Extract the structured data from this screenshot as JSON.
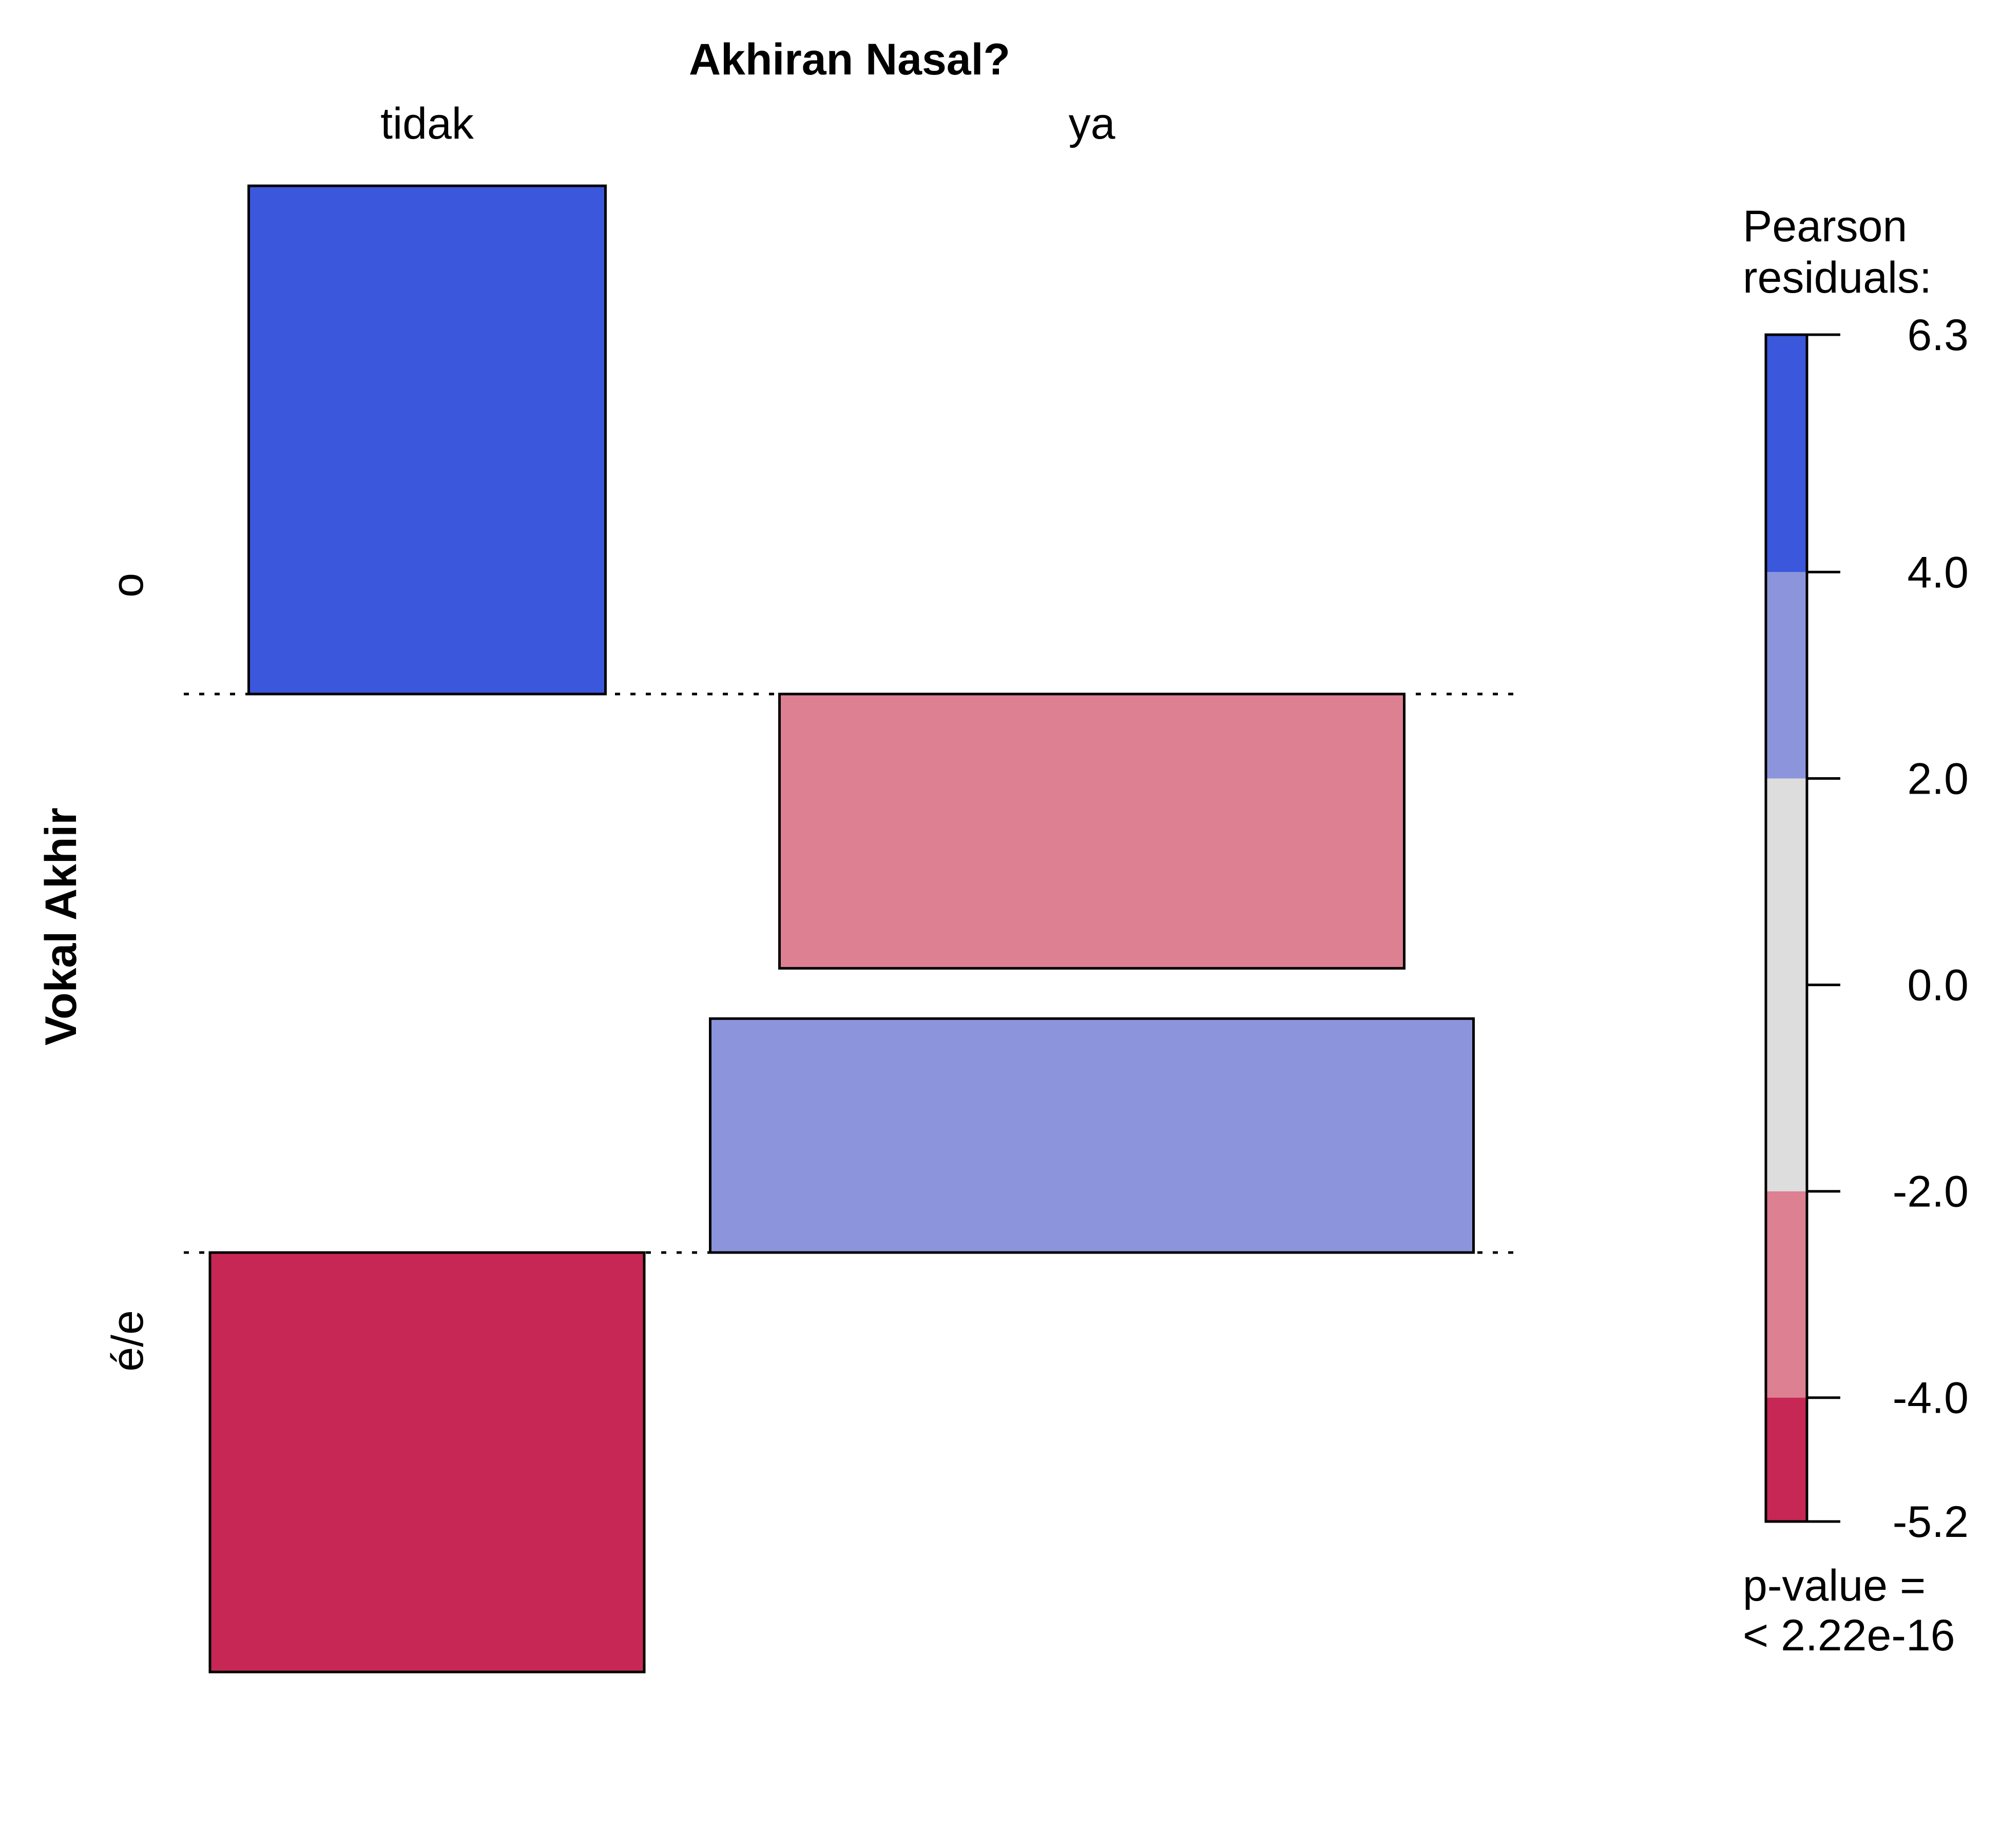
{
  "chart_data": {
    "type": "association",
    "top_variable": "Akhiran Nasal?",
    "left_variable": "Vokal Akhir",
    "columns": [
      "tidak",
      "ya"
    ],
    "rows": [
      "o",
      "é/e"
    ],
    "residual_shading": "Pearson residuals",
    "cells": [
      {
        "row": "o",
        "column": "tidak",
        "residual": 6.3,
        "color": "#3b57dc"
      },
      {
        "row": "o",
        "column": "ya",
        "residual": -3.4,
        "color": "#dc8092"
      },
      {
        "row": "é/e",
        "column": "tidak",
        "residual": -5.2,
        "color": "#c72755"
      },
      {
        "row": "é/e",
        "column": "ya",
        "residual": 2.9,
        "color": "#8c95db"
      }
    ],
    "legend": {
      "title_line1": "Pearson",
      "title_line2": "residuals:",
      "range": [
        -5.2,
        6.3
      ],
      "ticks": [
        "6.3",
        "4.0",
        "2.0",
        "0.0",
        "-2.0",
        "-4.0",
        "-5.2"
      ],
      "tick_values": [
        6.3,
        4.0,
        2.0,
        0.0,
        -2.0,
        -4.0,
        -5.2
      ],
      "bands": [
        {
          "from": 4.0,
          "to": 6.3,
          "color": "#3b57dc"
        },
        {
          "from": 2.0,
          "to": 4.0,
          "color": "#8c95db"
        },
        {
          "from": -2.0,
          "to": 2.0,
          "color": "#dddddd"
        },
        {
          "from": -4.0,
          "to": -2.0,
          "color": "#dc8092"
        },
        {
          "from": -5.2,
          "to": -4.0,
          "color": "#c72755"
        }
      ],
      "pvalue_line1": "p-value =",
      "pvalue_line2": "< 2.22e-16"
    }
  }
}
